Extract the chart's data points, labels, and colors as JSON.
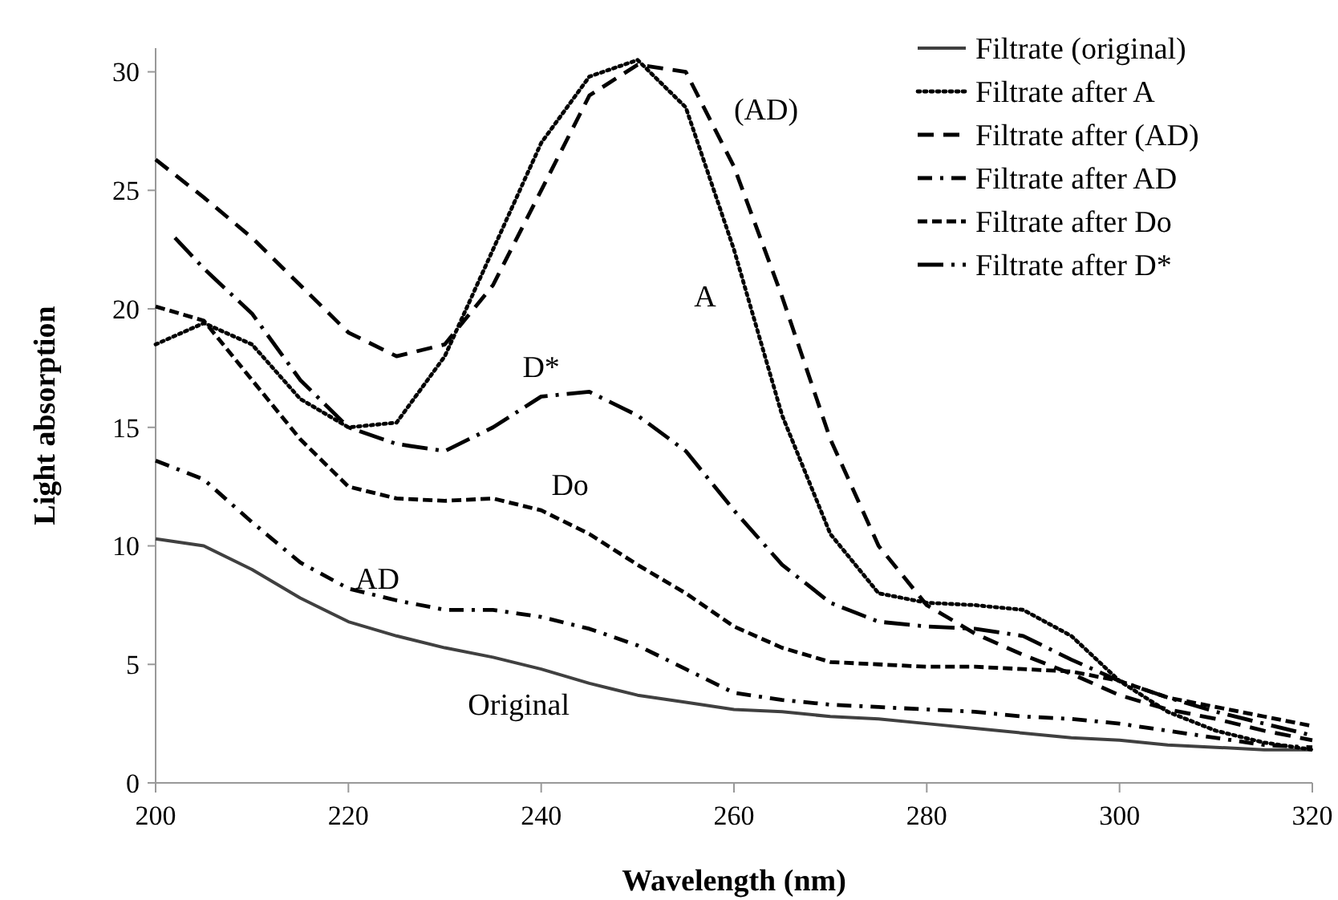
{
  "chart_data": {
    "type": "line",
    "xlabel": "Wavelength (nm)",
    "ylabel": "Light absorption",
    "x": [
      200,
      205,
      210,
      215,
      220,
      225,
      230,
      235,
      240,
      245,
      250,
      255,
      260,
      265,
      270,
      275,
      280,
      285,
      290,
      295,
      300,
      305,
      310,
      315,
      320
    ],
    "series": [
      {
        "name": "Filtrate (original)",
        "color": "#404040",
        "line_style": "solid",
        "values": [
          10.3,
          10.0,
          9.0,
          7.8,
          6.8,
          6.2,
          5.7,
          5.3,
          4.8,
          4.2,
          3.7,
          3.4,
          3.1,
          3.0,
          2.8,
          2.7,
          2.5,
          2.3,
          2.1,
          1.9,
          1.8,
          1.6,
          1.5,
          1.4,
          1.4
        ]
      },
      {
        "name": "Filtrate after A",
        "color": "#000000",
        "line_style": "dotted",
        "values": [
          18.5,
          19.4,
          18.5,
          16.2,
          15.0,
          15.2,
          18.0,
          22.5,
          27.0,
          29.8,
          30.5,
          28.5,
          22.5,
          15.5,
          10.5,
          8.0,
          7.6,
          7.5,
          7.3,
          6.2,
          4.3,
          3.0,
          2.2,
          1.7,
          1.4
        ]
      },
      {
        "name": "Filtrate after (AD)",
        "color": "#000000",
        "line_style": "dashed",
        "values": [
          26.3,
          24.7,
          23.0,
          21.0,
          19.0,
          18.0,
          18.5,
          21.0,
          25.0,
          29.0,
          30.3,
          30.0,
          26.0,
          20.5,
          14.5,
          10.0,
          7.5,
          6.3,
          5.4,
          4.6,
          3.7,
          3.1,
          2.7,
          2.2,
          1.8
        ]
      },
      {
        "name": "Filtrate after AD",
        "color": "#000000",
        "line_style": "dashed",
        "values": [
          13.6,
          12.8,
          11.0,
          9.3,
          8.2,
          7.7,
          7.3,
          7.3,
          7.0,
          6.5,
          5.8,
          4.8,
          3.8,
          3.5,
          3.3,
          3.2,
          3.1,
          3.0,
          2.8,
          2.7,
          2.5,
          2.2,
          1.9,
          1.6,
          1.5
        ]
      },
      {
        "name": "Filtrate after Do",
        "color": "#000000",
        "line_style": "dashed",
        "values": [
          20.1,
          19.5,
          17.0,
          14.5,
          12.5,
          12.0,
          11.9,
          12.0,
          11.5,
          10.5,
          9.2,
          8.0,
          6.6,
          5.7,
          5.1,
          5.0,
          4.9,
          4.9,
          4.8,
          4.7,
          4.3,
          3.6,
          3.2,
          2.8,
          2.4
        ]
      },
      {
        "name": "Filtrate after D*",
        "color": "#000000",
        "line_style": "dashed",
        "x": [
          202,
          205,
          210,
          215,
          220,
          225,
          230,
          235,
          240,
          245,
          250,
          255,
          260,
          265,
          270,
          275,
          280,
          285,
          290,
          295,
          300,
          305,
          310,
          315,
          320
        ],
        "values": [
          23.0,
          21.7,
          19.8,
          17.0,
          15.0,
          14.3,
          14.0,
          15.0,
          16.3,
          16.5,
          15.5,
          14.0,
          11.5,
          9.2,
          7.6,
          6.8,
          6.6,
          6.5,
          6.2,
          5.2,
          4.3,
          3.6,
          3.0,
          2.5,
          2.0
        ]
      }
    ],
    "annotations": [
      {
        "text": "(AD)",
        "x": 260,
        "y": 26.0
      },
      {
        "text": "A",
        "x": 260,
        "y": 22.5
      },
      {
        "text": "D*",
        "x": 240,
        "y": 16.3
      },
      {
        "text": "Do",
        "x": 240,
        "y": 11.5
      },
      {
        "text": "AD",
        "x": 225,
        "y": 7.7
      },
      {
        "text": "Original",
        "x": 240,
        "y": 4.8
      }
    ],
    "xlim": [
      200,
      320
    ],
    "xticks": [
      200,
      220,
      240,
      260,
      280,
      300,
      320
    ],
    "ylim": [
      0,
      31
    ],
    "yticks": [
      0,
      5,
      10,
      15,
      20,
      25,
      30
    ],
    "grid": false,
    "legend": "top right",
    "marker": "none"
  }
}
